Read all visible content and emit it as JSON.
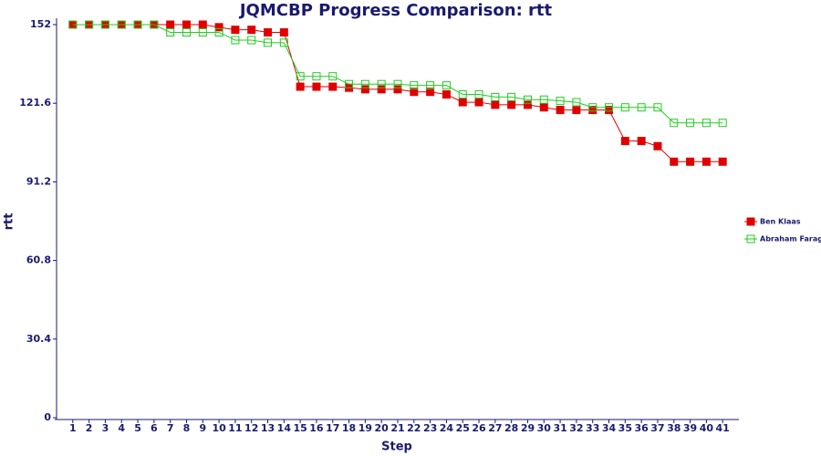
{
  "chart_data": {
    "type": "line",
    "title": "JQMCBP Progress Comparison: rtt",
    "x_label": "Step",
    "y_label": "rtt",
    "categories": [
      "1",
      "2",
      "3",
      "4",
      "5",
      "6",
      "7",
      "8",
      "9",
      "10",
      "11",
      "12",
      "13",
      "14",
      "15",
      "16",
      "17",
      "18",
      "19",
      "20",
      "21",
      "22",
      "23",
      "24",
      "25",
      "26",
      "27",
      "28",
      "29",
      "30",
      "31",
      "32",
      "33",
      "34",
      "35",
      "36",
      "37",
      "38",
      "39",
      "40",
      "41"
    ],
    "series": [
      {
        "name": "Ben Klaas",
        "color": "#e00000",
        "marker": "filled",
        "values": [
          152,
          152,
          152,
          152,
          152,
          152,
          152,
          152,
          152,
          151,
          150,
          150,
          149,
          149,
          128,
          128,
          128,
          127.6,
          127,
          127,
          127,
          126,
          126,
          125,
          122,
          122,
          121,
          121,
          121,
          120,
          119,
          119,
          119,
          119,
          107,
          107,
          105,
          99,
          99,
          99,
          99
        ]
      },
      {
        "name": "Abraham Farag",
        "color": "#22cc22",
        "marker": "hollow",
        "values": [
          152,
          152,
          152,
          152,
          152,
          152,
          149,
          149,
          149,
          149,
          146,
          146,
          145,
          145,
          132,
          132,
          132,
          129,
          129,
          129,
          129,
          128.5,
          128.5,
          128.5,
          125,
          125,
          124,
          124,
          123,
          123,
          122.5,
          122,
          120,
          120,
          120,
          120,
          120,
          114,
          114,
          114,
          114
        ]
      }
    ],
    "ylim": [
      0,
      152
    ],
    "yticks": [
      0,
      30.4,
      60.8,
      91.2,
      121.6,
      152
    ],
    "legend": "right"
  }
}
